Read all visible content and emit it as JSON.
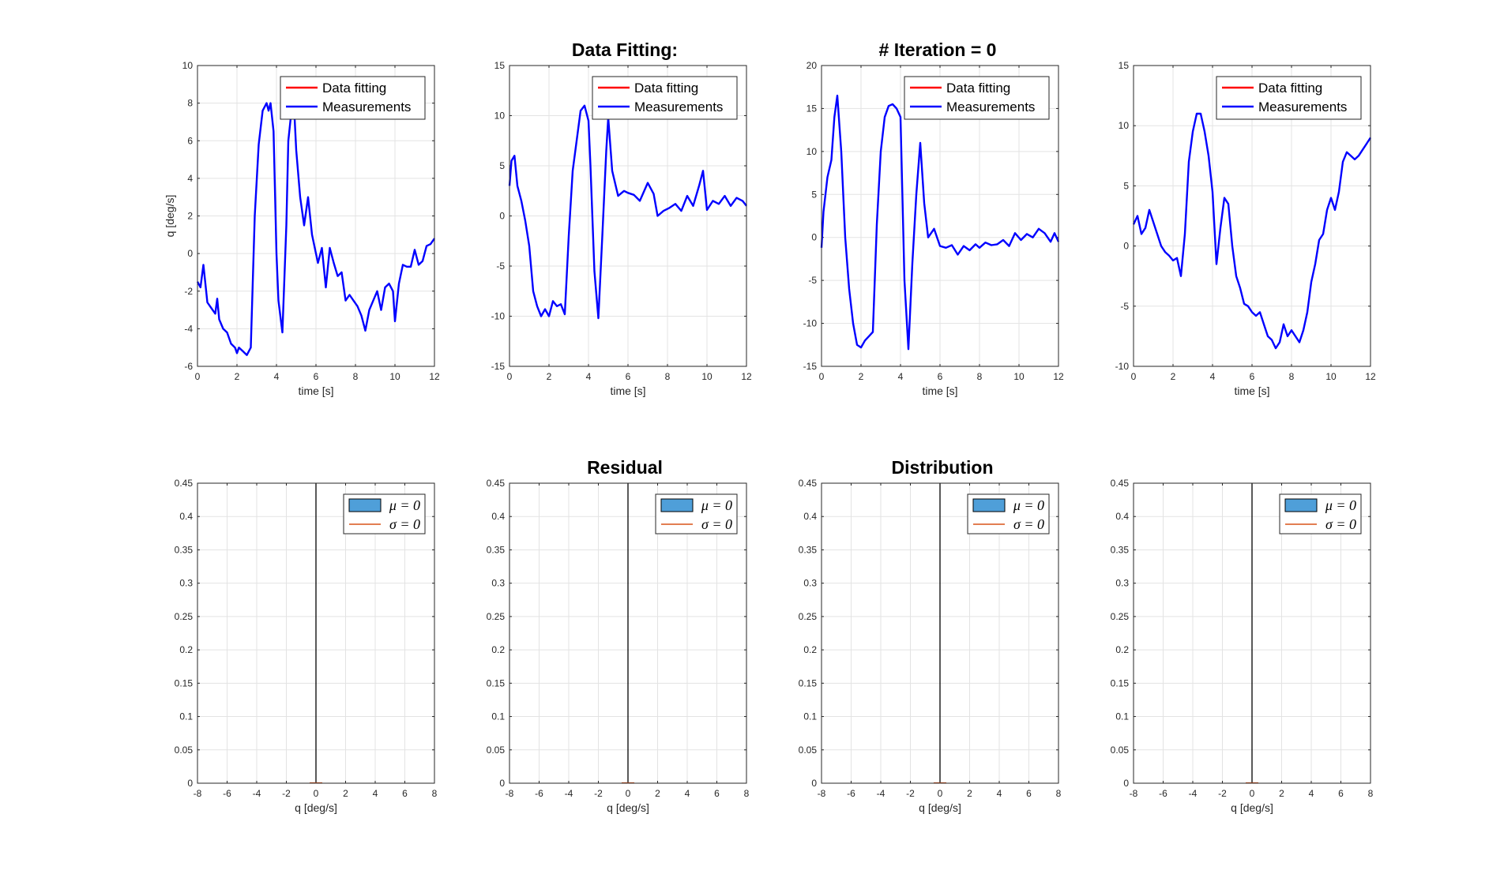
{
  "figure": {
    "top_titles": [
      "Data Fitting:",
      "# Iteration = 0"
    ],
    "bottom_titles": [
      "Residual",
      "Distribution"
    ]
  },
  "colors": {
    "measurements": "#0000ff",
    "data_fitting": "#ff0000",
    "hist_fill": "#4f9fd9",
    "sigma_line": "#d95319",
    "grid": "#e3e3e3",
    "axis": "#262626"
  },
  "chart_data": [
    {
      "type": "line",
      "xlabel": "time [s]",
      "ylabel": "q [deg/s]",
      "xlim": [
        0,
        12
      ],
      "ylim": [
        -6,
        10
      ],
      "xticks": [
        0,
        2,
        4,
        6,
        8,
        10,
        12
      ],
      "yticks": [
        -6,
        -4,
        -2,
        0,
        2,
        4,
        6,
        8,
        10
      ],
      "grid": true,
      "legend": {
        "position": "top-right",
        "entries": [
          "Data fitting",
          "Measurements"
        ]
      },
      "series": [
        {
          "name": "Data fitting",
          "x": [],
          "y": []
        },
        {
          "name": "Measurements",
          "x": [
            0,
            0.15,
            0.3,
            0.5,
            0.7,
            0.9,
            1.0,
            1.1,
            1.3,
            1.5,
            1.7,
            1.9,
            2.0,
            2.1,
            2.3,
            2.5,
            2.7,
            2.9,
            3.1,
            3.3,
            3.5,
            3.6,
            3.7,
            3.85,
            4.0,
            4.1,
            4.3,
            4.5,
            4.6,
            4.8,
            4.9,
            5.0,
            5.2,
            5.4,
            5.6,
            5.8,
            6.0,
            6.1,
            6.3,
            6.5,
            6.7,
            6.9,
            7.1,
            7.3,
            7.5,
            7.7,
            7.9,
            8.1,
            8.3,
            8.5,
            8.7,
            8.9,
            9.1,
            9.3,
            9.5,
            9.7,
            9.9,
            10.0,
            10.2,
            10.4,
            10.6,
            10.8,
            11.0,
            11.2,
            11.4,
            11.6,
            11.8,
            12.0
          ],
          "y": [
            -1.5,
            -1.8,
            -0.6,
            -2.6,
            -2.9,
            -3.2,
            -2.4,
            -3.5,
            -4.0,
            -4.2,
            -4.8,
            -5.0,
            -5.3,
            -5.0,
            -5.2,
            -5.4,
            -5.0,
            2.0,
            5.8,
            7.6,
            8.0,
            7.6,
            8.0,
            6.5,
            0.0,
            -2.5,
            -4.2,
            1.5,
            6.0,
            8.0,
            7.6,
            5.5,
            3.0,
            1.5,
            3.0,
            1.0,
            0.0,
            -0.5,
            0.3,
            -1.8,
            0.3,
            -0.5,
            -1.2,
            -1.0,
            -2.5,
            -2.2,
            -2.5,
            -2.8,
            -3.3,
            -4.1,
            -3.0,
            -2.5,
            -2.0,
            -3.0,
            -1.8,
            -1.6,
            -2.0,
            -3.6,
            -1.6,
            -0.6,
            -0.7,
            -0.7,
            0.2,
            -0.6,
            -0.4,
            0.4,
            0.5,
            0.8
          ]
        }
      ]
    },
    {
      "type": "line",
      "xlabel": "time [s]",
      "ylabel": "",
      "xlim": [
        0,
        12
      ],
      "ylim": [
        -15,
        15
      ],
      "xticks": [
        0,
        2,
        4,
        6,
        8,
        10,
        12
      ],
      "yticks": [
        -15,
        -10,
        -5,
        0,
        5,
        10,
        15
      ],
      "grid": true,
      "legend": {
        "position": "top-right",
        "entries": [
          "Data fitting",
          "Measurements"
        ]
      },
      "series": [
        {
          "name": "Data fitting",
          "x": [],
          "y": []
        },
        {
          "name": "Measurements",
          "x": [
            0,
            0.1,
            0.25,
            0.4,
            0.6,
            0.8,
            1.0,
            1.2,
            1.4,
            1.6,
            1.8,
            2.0,
            2.2,
            2.4,
            2.6,
            2.8,
            3.0,
            3.2,
            3.4,
            3.6,
            3.8,
            4.0,
            4.1,
            4.3,
            4.5,
            4.7,
            4.9,
            5.0,
            5.2,
            5.5,
            5.8,
            6.0,
            6.3,
            6.6,
            7.0,
            7.3,
            7.5,
            7.8,
            8.1,
            8.4,
            8.7,
            9.0,
            9.3,
            9.6,
            9.8,
            10.0,
            10.3,
            10.6,
            10.9,
            11.2,
            11.5,
            11.8,
            12.0
          ],
          "y": [
            3.0,
            5.5,
            6.0,
            3.0,
            1.5,
            -0.5,
            -3.0,
            -7.5,
            -9.0,
            -10.0,
            -9.3,
            -10.0,
            -8.5,
            -9.0,
            -8.8,
            -9.8,
            -2.0,
            4.5,
            7.5,
            10.5,
            11.0,
            9.5,
            5.0,
            -5.5,
            -10.2,
            -2.0,
            6.5,
            9.8,
            4.5,
            2.0,
            2.5,
            2.3,
            2.1,
            1.5,
            3.3,
            2.2,
            0.0,
            0.5,
            0.8,
            1.2,
            0.5,
            2.0,
            1.0,
            3.0,
            4.5,
            0.6,
            1.5,
            1.2,
            2.0,
            1.0,
            1.8,
            1.5,
            1.0
          ]
        }
      ]
    },
    {
      "type": "line",
      "xlabel": "time [s]",
      "ylabel": "",
      "xlim": [
        0,
        12
      ],
      "ylim": [
        -15,
        20
      ],
      "xticks": [
        0,
        2,
        4,
        6,
        8,
        10,
        12
      ],
      "yticks": [
        -15,
        -10,
        -5,
        0,
        5,
        10,
        15,
        20
      ],
      "grid": true,
      "legend": {
        "position": "top-right",
        "entries": [
          "Data fitting",
          "Measurements"
        ]
      },
      "series": [
        {
          "name": "Data fitting",
          "x": [],
          "y": []
        },
        {
          "name": "Measurements",
          "x": [
            0,
            0.1,
            0.3,
            0.5,
            0.65,
            0.8,
            1.0,
            1.2,
            1.4,
            1.6,
            1.8,
            2.0,
            2.2,
            2.4,
            2.6,
            2.8,
            3.0,
            3.2,
            3.4,
            3.6,
            3.8,
            4.0,
            4.2,
            4.4,
            4.6,
            4.8,
            5.0,
            5.2,
            5.4,
            5.7,
            6.0,
            6.3,
            6.6,
            6.9,
            7.2,
            7.5,
            7.8,
            8.0,
            8.3,
            8.6,
            8.9,
            9.2,
            9.5,
            9.8,
            10.1,
            10.4,
            10.7,
            11.0,
            11.3,
            11.6,
            11.8,
            12.0
          ],
          "y": [
            -1.2,
            3.0,
            7.0,
            9.0,
            14.0,
            16.5,
            10.0,
            0.0,
            -6.0,
            -10.0,
            -12.5,
            -12.8,
            -12.0,
            -11.5,
            -11.0,
            1.5,
            10.0,
            14.0,
            15.3,
            15.5,
            15.0,
            14.0,
            -5.0,
            -13.0,
            -3.0,
            5.0,
            11.0,
            4.0,
            0.0,
            1.0,
            -1.0,
            -1.2,
            -0.9,
            -2.0,
            -1.0,
            -1.5,
            -0.8,
            -1.2,
            -0.6,
            -0.9,
            -0.8,
            -0.3,
            -1.0,
            0.5,
            -0.3,
            0.4,
            0.0,
            1.0,
            0.5,
            -0.5,
            0.5,
            -0.5
          ]
        }
      ]
    },
    {
      "type": "line",
      "xlabel": "time [s]",
      "ylabel": "",
      "xlim": [
        0,
        12
      ],
      "ylim": [
        -10,
        15
      ],
      "xticks": [
        0,
        2,
        4,
        6,
        8,
        10,
        12
      ],
      "yticks": [
        -10,
        -5,
        0,
        5,
        10,
        15
      ],
      "grid": true,
      "legend": {
        "position": "top-right",
        "entries": [
          "Data fitting",
          "Measurements"
        ]
      },
      "series": [
        {
          "name": "Data fitting",
          "x": [],
          "y": []
        },
        {
          "name": "Measurements",
          "x": [
            0,
            0.2,
            0.4,
            0.6,
            0.8,
            1.0,
            1.2,
            1.4,
            1.6,
            1.8,
            2.0,
            2.2,
            2.4,
            2.6,
            2.8,
            3.0,
            3.2,
            3.4,
            3.6,
            3.8,
            4.0,
            4.2,
            4.4,
            4.6,
            4.8,
            5.0,
            5.2,
            5.4,
            5.6,
            5.8,
            6.0,
            6.2,
            6.4,
            6.6,
            6.8,
            7.0,
            7.2,
            7.4,
            7.6,
            7.8,
            8.0,
            8.2,
            8.4,
            8.6,
            8.8,
            9.0,
            9.2,
            9.4,
            9.6,
            9.8,
            10.0,
            10.2,
            10.4,
            10.6,
            10.8,
            11.0,
            11.2,
            11.4,
            11.6,
            11.8,
            12.0
          ],
          "y": [
            1.8,
            2.5,
            1.0,
            1.5,
            3.0,
            2.0,
            1.0,
            0.0,
            -0.5,
            -0.8,
            -1.2,
            -1.0,
            -2.5,
            1.0,
            7.0,
            9.5,
            11.0,
            11.0,
            9.5,
            7.5,
            4.5,
            -1.5,
            1.5,
            4.0,
            3.5,
            0.0,
            -2.5,
            -3.5,
            -4.8,
            -5.0,
            -5.5,
            -5.8,
            -5.5,
            -6.5,
            -7.5,
            -7.8,
            -8.5,
            -8.0,
            -6.5,
            -7.5,
            -7.0,
            -7.5,
            -8.0,
            -7.0,
            -5.5,
            -3.0,
            -1.5,
            0.5,
            1.0,
            3.0,
            4.0,
            3.0,
            4.5,
            7.0,
            7.8,
            7.5,
            7.2,
            7.5,
            8.0,
            8.5,
            9.0
          ]
        }
      ]
    },
    {
      "type": "bar",
      "xlabel": "q [deg/s]",
      "ylabel": "",
      "xlim": [
        -8,
        8
      ],
      "ylim": [
        0,
        0.45
      ],
      "xticks": [
        -8,
        -6,
        -4,
        -2,
        0,
        2,
        4,
        6,
        8
      ],
      "yticks": [
        0,
        0.05,
        0.1,
        0.15,
        0.2,
        0.25,
        0.3,
        0.35,
        0.4,
        0.45
      ],
      "grid": true,
      "vertical_line_x": 0,
      "legend": {
        "position": "top-right",
        "entries": [
          "μ = 0",
          "σ = 0"
        ]
      },
      "series": [
        {
          "name": "μ = 0",
          "values": []
        },
        {
          "name": "σ = 0",
          "values": []
        }
      ]
    },
    {
      "type": "bar",
      "xlabel": "q [deg/s]",
      "ylabel": "",
      "xlim": [
        -8,
        8
      ],
      "ylim": [
        0,
        0.45
      ],
      "xticks": [
        -8,
        -6,
        -4,
        -2,
        0,
        2,
        4,
        6,
        8
      ],
      "yticks": [
        0,
        0.05,
        0.1,
        0.15,
        0.2,
        0.25,
        0.3,
        0.35,
        0.4,
        0.45
      ],
      "grid": true,
      "vertical_line_x": 0,
      "legend": {
        "position": "top-right",
        "entries": [
          "μ = 0",
          "σ = 0"
        ]
      },
      "series": [
        {
          "name": "μ = 0",
          "values": []
        },
        {
          "name": "σ = 0",
          "values": []
        }
      ]
    },
    {
      "type": "bar",
      "xlabel": "q [deg/s]",
      "ylabel": "",
      "xlim": [
        -8,
        8
      ],
      "ylim": [
        0,
        0.45
      ],
      "xticks": [
        -8,
        -6,
        -4,
        -2,
        0,
        2,
        4,
        6,
        8
      ],
      "yticks": [
        0,
        0.05,
        0.1,
        0.15,
        0.2,
        0.25,
        0.3,
        0.35,
        0.4,
        0.45
      ],
      "grid": true,
      "vertical_line_x": 0,
      "legend": {
        "position": "top-right",
        "entries": [
          "μ = 0",
          "σ = 0"
        ]
      },
      "series": [
        {
          "name": "μ = 0",
          "values": []
        },
        {
          "name": "σ = 0",
          "values": []
        }
      ]
    },
    {
      "type": "bar",
      "xlabel": "q [deg/s]",
      "ylabel": "",
      "xlim": [
        -8,
        8
      ],
      "ylim": [
        0,
        0.45
      ],
      "xticks": [
        -8,
        -6,
        -4,
        -2,
        0,
        2,
        4,
        6,
        8
      ],
      "yticks": [
        0,
        0.05,
        0.1,
        0.15,
        0.2,
        0.25,
        0.3,
        0.35,
        0.4,
        0.45
      ],
      "grid": true,
      "vertical_line_x": 0,
      "legend": {
        "position": "top-right",
        "entries": [
          "μ = 0",
          "σ = 0"
        ]
      },
      "series": [
        {
          "name": "μ = 0",
          "values": []
        },
        {
          "name": "σ = 0",
          "values": []
        }
      ]
    }
  ]
}
